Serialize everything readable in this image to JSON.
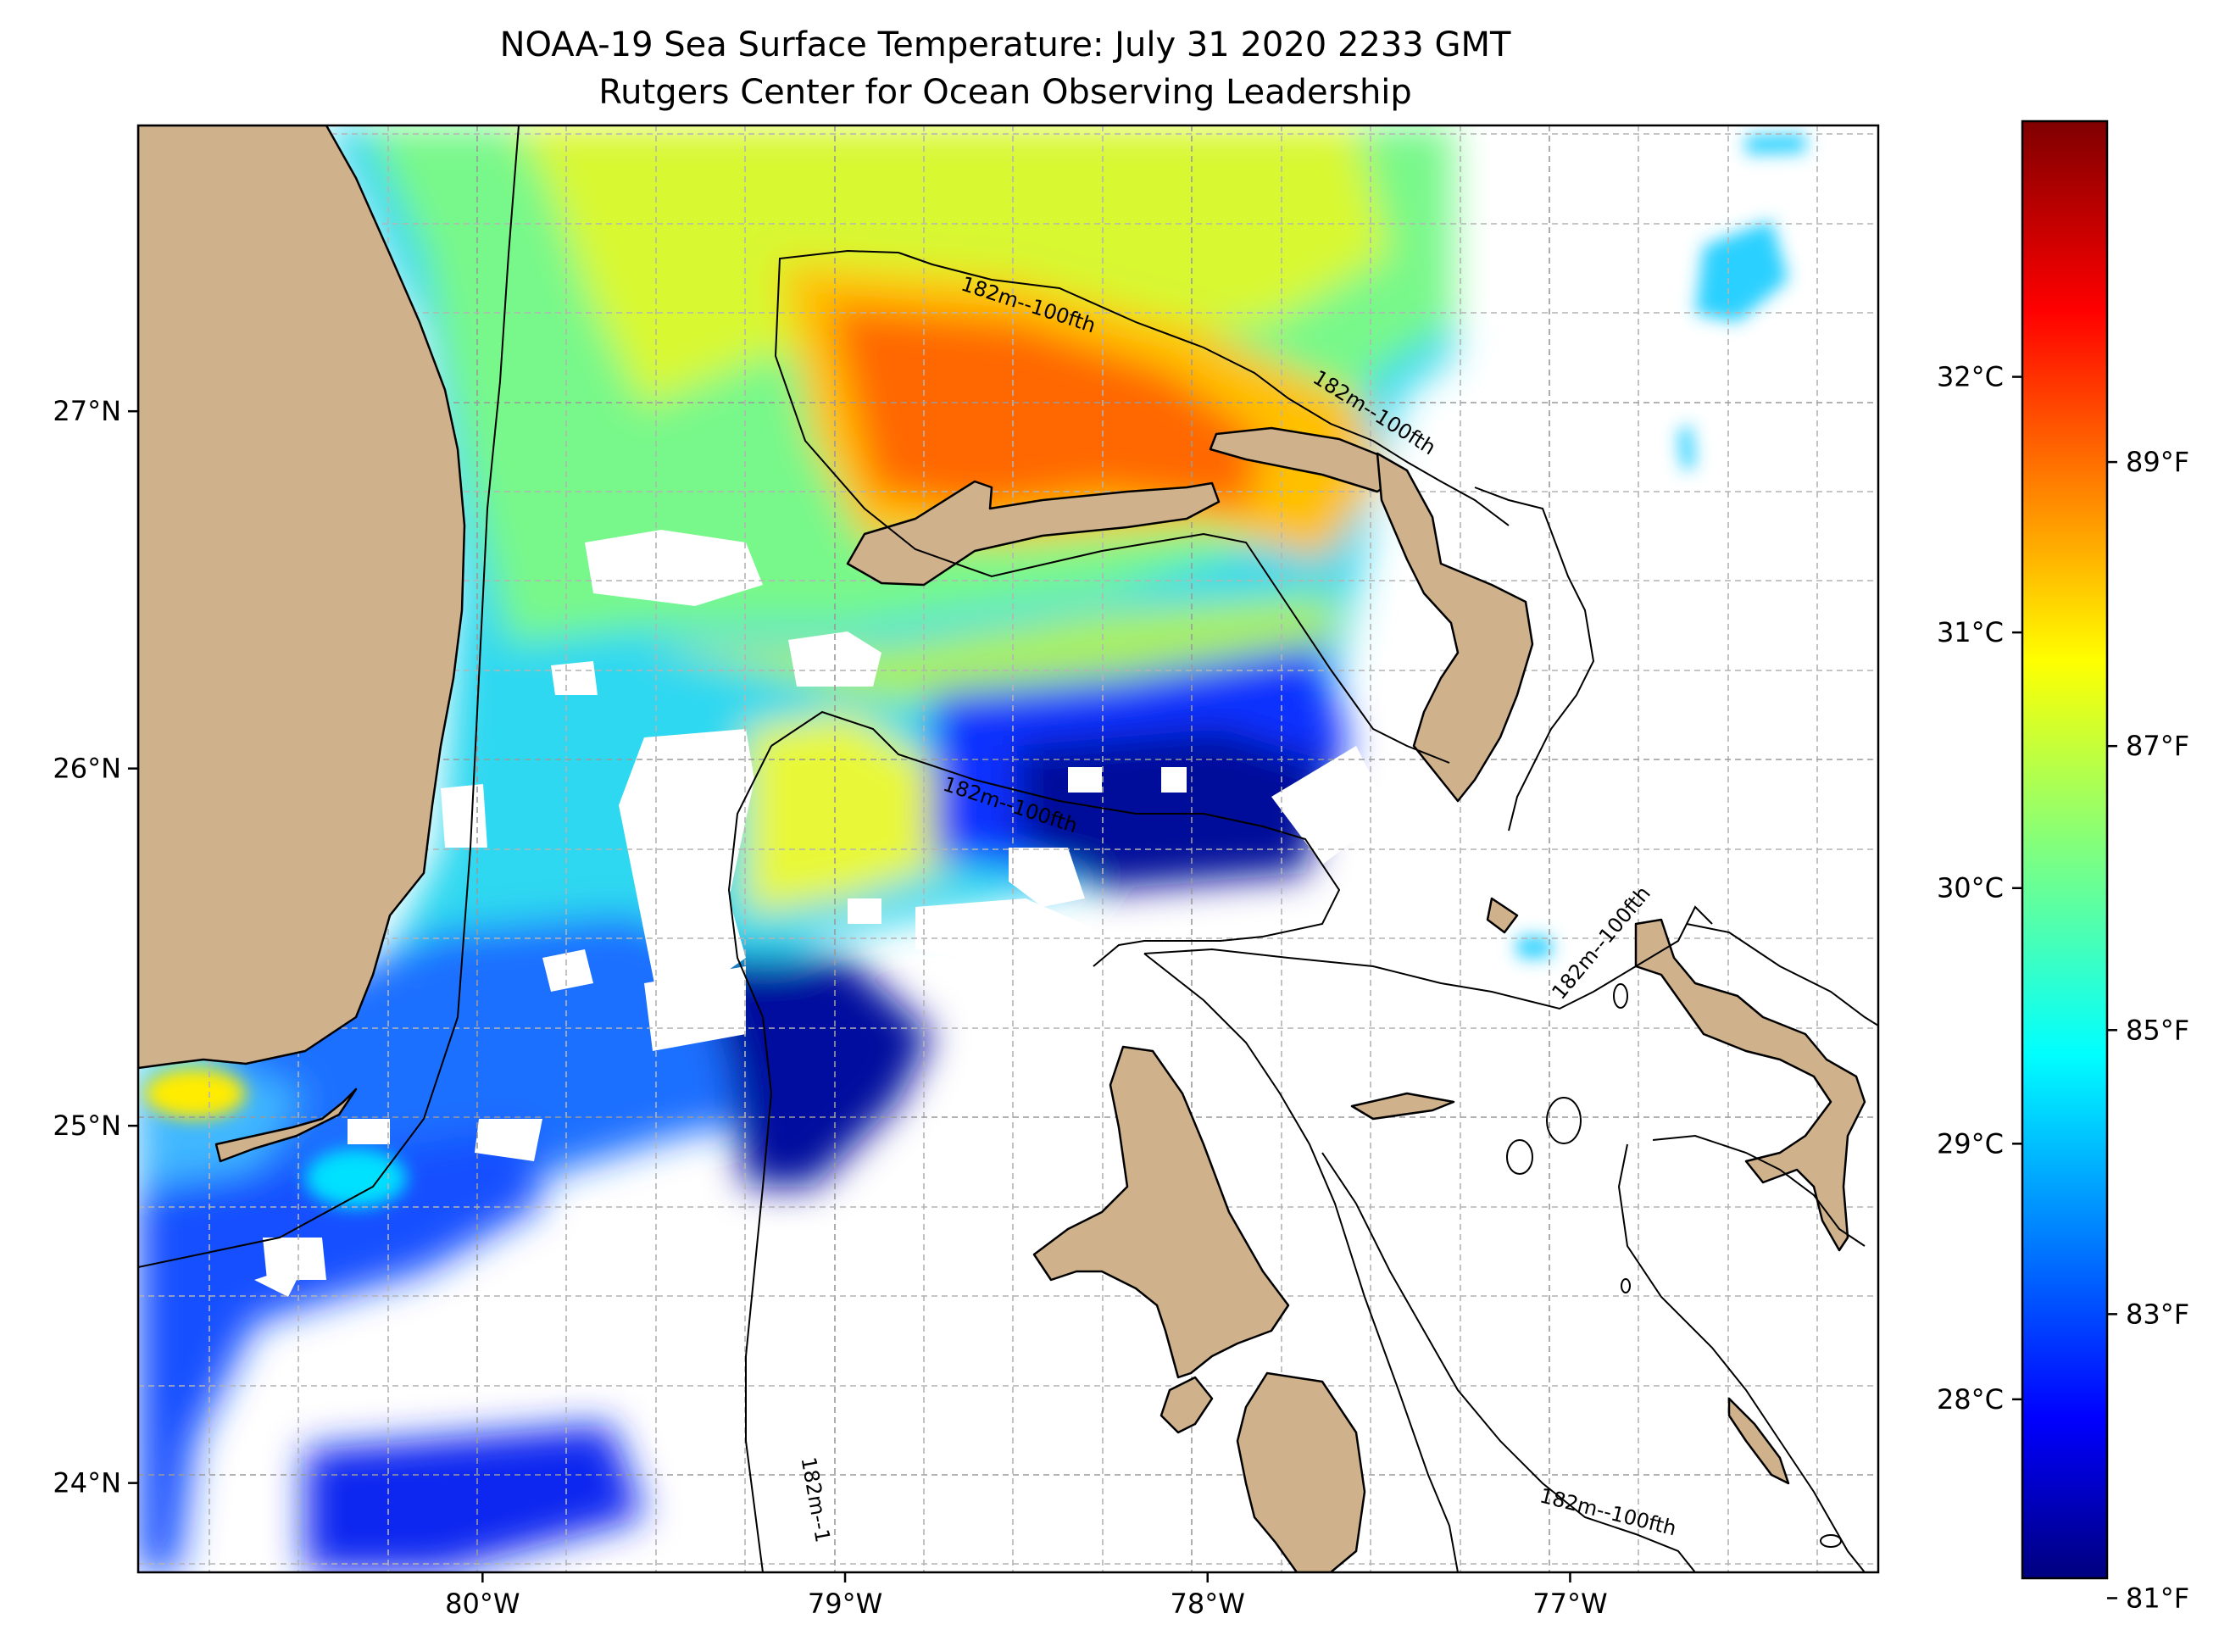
{
  "title": "NOAA-19 Sea Surface Temperature: July 31 2020 2233 GMT",
  "subtitle": "Rutgers Center for Ocean Observing Leadership",
  "map": {
    "lon_range": [
      -80.95,
      -76.15
    ],
    "lat_range": [
      23.75,
      27.8
    ],
    "lon_ticks": [
      {
        "value": -80,
        "label": "80°W"
      },
      {
        "value": -79,
        "label": "79°W"
      },
      {
        "value": -78,
        "label": "78°W"
      },
      {
        "value": -77,
        "label": "77°W"
      }
    ],
    "lat_ticks": [
      {
        "value": 24,
        "label": "24°N"
      },
      {
        "value": 25,
        "label": "25°N"
      },
      {
        "value": 26,
        "label": "26°N"
      },
      {
        "value": 27,
        "label": "27°N"
      }
    ],
    "gridlines": true,
    "land_color": "#cfb28c",
    "no_data_color": "#ffffff",
    "contour_labels": [
      {
        "text": "182m--100fth",
        "lon": -78.5,
        "lat": 27.28,
        "angle": 18
      },
      {
        "text": "182m--100fth",
        "lon": -77.55,
        "lat": 26.98,
        "angle": 32
      },
      {
        "text": "182m--100fth",
        "lon": -78.55,
        "lat": 25.88,
        "angle": 18
      },
      {
        "text": "182m--100fth",
        "lon": -76.9,
        "lat": 25.5,
        "angle": -50
      },
      {
        "text": "182m--100fth",
        "lon": -76.9,
        "lat": 23.9,
        "angle": 14
      },
      {
        "text": "182m--1",
        "lon": -79.1,
        "lat": 23.95,
        "angle": 80
      }
    ]
  },
  "colorbar": {
    "colormap": "jet",
    "range_c": [
      27.3,
      33.0
    ],
    "celsius_ticks": [
      {
        "value": 28,
        "label": "28°C"
      },
      {
        "value": 29,
        "label": "29°C"
      },
      {
        "value": 30,
        "label": "30°C"
      },
      {
        "value": 31,
        "label": "31°C"
      },
      {
        "value": 32,
        "label": "32°C"
      }
    ],
    "fahrenheit_ticks": [
      {
        "value": 81,
        "label": "81°F"
      },
      {
        "value": 83,
        "label": "83°F"
      },
      {
        "value": 85,
        "label": "85°F"
      },
      {
        "value": 87,
        "label": "87°F"
      },
      {
        "value": 89,
        "label": "89°F"
      }
    ]
  }
}
